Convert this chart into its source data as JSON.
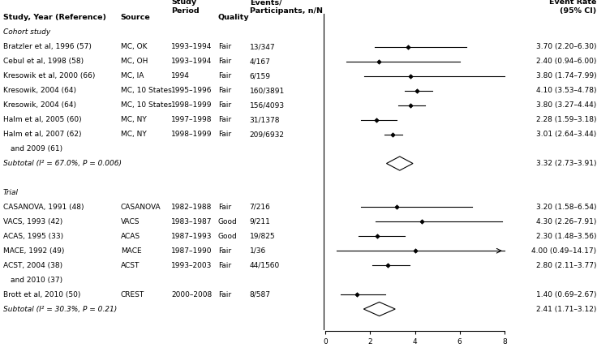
{
  "cohort_studies": [
    {
      "label": "Bratzler et al, 1996 (57)",
      "source": "MC, OK",
      "period": "1993–1994",
      "quality": "Fair",
      "events": "13/347",
      "mean": 3.7,
      "ci_low": 2.2,
      "ci_high": 6.3,
      "ci_text": "3.70 (2.20–6.30)",
      "arrow": false
    },
    {
      "label": "Cebul et al, 1998 (58)",
      "source": "MC, OH",
      "period": "1993–1994",
      "quality": "Fair",
      "events": "4/167",
      "mean": 2.4,
      "ci_low": 0.94,
      "ci_high": 6.0,
      "ci_text": "2.40 (0.94–6.00)",
      "arrow": false
    },
    {
      "label": "Kresowik et al, 2000 (66)",
      "source": "MC, IA",
      "period": "1994",
      "quality": "Fair",
      "events": "6/159",
      "mean": 3.8,
      "ci_low": 1.74,
      "ci_high": 7.99,
      "ci_text": "3.80 (1.74–7.99)",
      "arrow": false
    },
    {
      "label": "Kresowik, 2004 (64)",
      "source": "MC, 10 States",
      "period": "1995–1996",
      "quality": "Fair",
      "events": "160/3891",
      "mean": 4.1,
      "ci_low": 3.53,
      "ci_high": 4.78,
      "ci_text": "4.10 (3.53–4.78)",
      "arrow": false
    },
    {
      "label": "Kresowik, 2004 (64)",
      "source": "MC, 10 States",
      "period": "1998–1999",
      "quality": "Fair",
      "events": "156/4093",
      "mean": 3.8,
      "ci_low": 3.27,
      "ci_high": 4.44,
      "ci_text": "3.80 (3.27–4.44)",
      "arrow": false
    },
    {
      "label": "Halm et al, 2005 (60)",
      "source": "MC, NY",
      "period": "1997–1998",
      "quality": "Fair",
      "events": "31/1378",
      "mean": 2.28,
      "ci_low": 1.59,
      "ci_high": 3.18,
      "ci_text": "2.28 (1.59–3.18)",
      "arrow": false
    },
    {
      "label": "Halm et al, 2007 (62)",
      "label2": "  and 2009 (61)",
      "source": "MC, NY",
      "period": "1998–1999",
      "quality": "Fair",
      "events": "209/6932",
      "mean": 3.01,
      "ci_low": 2.64,
      "ci_high": 3.44,
      "ci_text": "3.01 (2.64–3.44)",
      "arrow": false
    }
  ],
  "cohort_subtotal": {
    "label": "Subtotal (I² = 67.0%, P = 0.006)",
    "mean": 3.32,
    "ci_low": 2.73,
    "ci_high": 3.91,
    "ci_text": "3.32 (2.73–3.91)"
  },
  "trials": [
    {
      "label": "CASANOVA, 1991 (48)",
      "label2": "",
      "source": "CASANOVA",
      "period": "1982–1988",
      "quality": "Fair",
      "events": "7/216",
      "mean": 3.2,
      "ci_low": 1.58,
      "ci_high": 6.54,
      "ci_text": "3.20 (1.58–6.54)",
      "arrow": false
    },
    {
      "label": "VACS, 1993 (42)",
      "label2": "",
      "source": "VACS",
      "period": "1983–1987",
      "quality": "Good",
      "events": "9/211",
      "mean": 4.3,
      "ci_low": 2.26,
      "ci_high": 7.91,
      "ci_text": "4.30 (2.26–7.91)",
      "arrow": false
    },
    {
      "label": "ACAS, 1995 (33)",
      "label2": "",
      "source": "ACAS",
      "period": "1987–1993",
      "quality": "Good",
      "events": "19/825",
      "mean": 2.3,
      "ci_low": 1.48,
      "ci_high": 3.56,
      "ci_text": "2.30 (1.48–3.56)",
      "arrow": false
    },
    {
      "label": "MACE, 1992 (49)",
      "label2": "",
      "source": "MACE",
      "period": "1987–1990",
      "quality": "Fair",
      "events": "1/36",
      "mean": 4.0,
      "ci_low": 0.49,
      "ci_high": 14.17,
      "ci_text": "4.00 (0.49–14.17)",
      "arrow": true
    },
    {
      "label": "ACST, 2004 (38)",
      "label2": "  and 2010 (37)",
      "source": "ACST",
      "period": "1993–2003",
      "quality": "Fair",
      "events": "44/1560",
      "mean": 2.8,
      "ci_low": 2.11,
      "ci_high": 3.77,
      "ci_text": "2.80 (2.11–3.77)",
      "arrow": false
    },
    {
      "label": "Brott et al, 2010 (50)",
      "label2": "",
      "source": "CREST",
      "period": "2000–2008",
      "quality": "Fair",
      "events": "8/587",
      "mean": 1.4,
      "ci_low": 0.69,
      "ci_high": 2.67,
      "ci_text": "1.40 (0.69–2.67)",
      "arrow": false
    }
  ],
  "trial_subtotal": {
    "label": "Subtotal (I² = 30.3%, P = 0.21)",
    "mean": 2.41,
    "ci_low": 1.71,
    "ci_high": 3.12,
    "ci_text": "2.41 (1.71–3.12)"
  },
  "x_ticks": [
    0,
    2,
    4,
    6,
    8
  ],
  "x_min": 0,
  "x_max": 8
}
